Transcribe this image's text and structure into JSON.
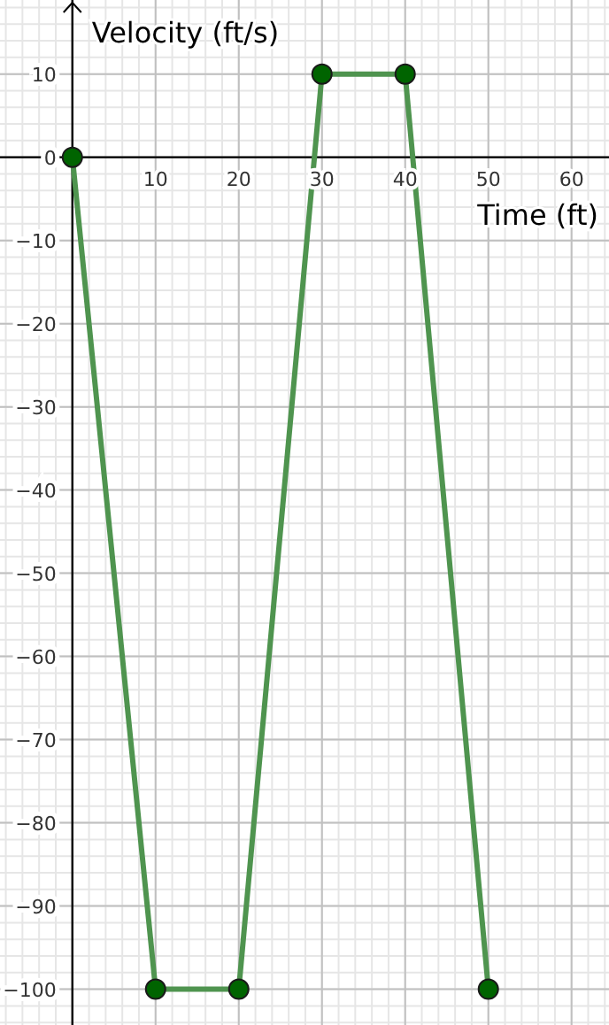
{
  "chart_data": {
    "type": "line",
    "xlabel": "Time (ft)",
    "ylabel": "Velocity (ft/s)",
    "x": [
      0,
      10,
      20,
      30,
      40,
      50
    ],
    "series": [
      {
        "color": "#4f944f",
        "values": [
          0,
          -100,
          -100,
          10,
          10,
          -100
        ]
      }
    ],
    "marker": "circle",
    "grid": true,
    "xlim": [
      -8.7,
      64.5
    ],
    "ylim": [
      -104.3,
      18.9
    ],
    "xticks": [
      10,
      20,
      30,
      40,
      50,
      60
    ],
    "yticks": [
      10,
      0,
      {
        "value": -10,
        "label": "−10"
      },
      {
        "value": -20,
        "label": "−20"
      },
      {
        "value": -30,
        "label": "−30"
      },
      {
        "value": -40,
        "label": "−40"
      },
      {
        "value": -50,
        "label": "−50"
      },
      {
        "value": -60,
        "label": "−60"
      },
      {
        "value": -70,
        "label": "−70"
      },
      {
        "value": -80,
        "label": "−80"
      },
      {
        "value": -90,
        "label": "−90"
      },
      {
        "value": -100,
        "label": "−100"
      }
    ]
  }
}
